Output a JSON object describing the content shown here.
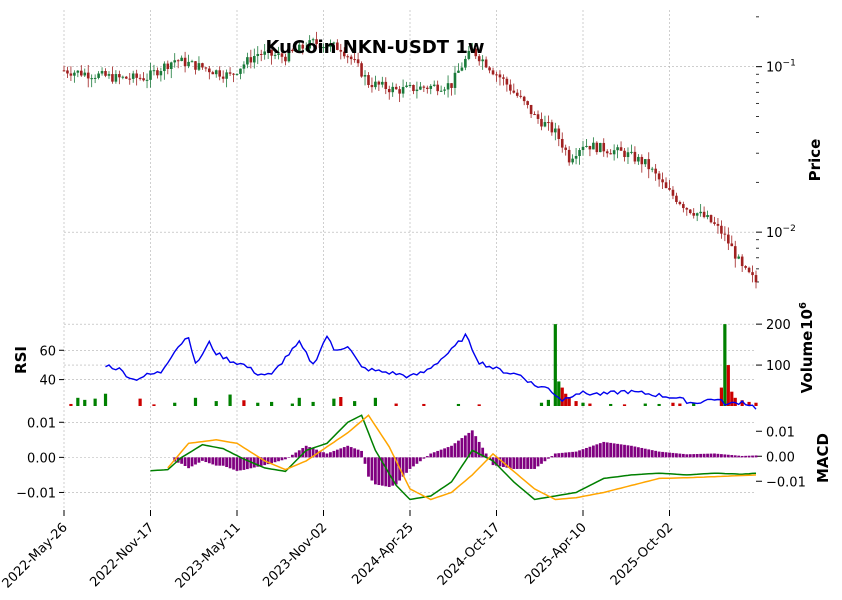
{
  "colors": {
    "up": "#1a7a3a",
    "down": "#a02020",
    "rsi": "#0000ee",
    "macd": "#008000",
    "signal": "#ffa500",
    "hist": "#800080",
    "vol_up": "#008000",
    "vol_down": "#cc0000"
  },
  "chart_data": [
    {
      "panel": "price",
      "type": "candlestick",
      "title": "KuCoin NKN-USDT 1w",
      "ylabel": "Price",
      "yscale": "log",
      "ylim": [
        0.004,
        0.22
      ],
      "yticks": [
        {
          "value": 0.1,
          "label": "10^-1"
        },
        {
          "value": 0.01,
          "label": "10^-2"
        }
      ],
      "xticks": [
        "2022-May-26",
        "2022-Nov-17",
        "2023-May-11",
        "2023-Nov-02",
        "2024-Apr-25",
        "2024-Oct-17",
        "2025-Apr-10",
        "2025-Oct-02"
      ],
      "close_anchors": [
        [
          0,
          0.095
        ],
        [
          8,
          0.09
        ],
        [
          16,
          0.085
        ],
        [
          24,
          0.086
        ],
        [
          32,
          0.11
        ],
        [
          40,
          0.099
        ],
        [
          48,
          0.088
        ],
        [
          56,
          0.12
        ],
        [
          64,
          0.115
        ],
        [
          72,
          0.14
        ],
        [
          80,
          0.13
        ],
        [
          88,
          0.08
        ],
        [
          96,
          0.072
        ],
        [
          104,
          0.075
        ],
        [
          112,
          0.078
        ],
        [
          118,
          0.125
        ],
        [
          124,
          0.095
        ],
        [
          130,
          0.07
        ],
        [
          136,
          0.05
        ],
        [
          142,
          0.04
        ],
        [
          146,
          0.028
        ],
        [
          150,
          0.034
        ],
        [
          156,
          0.032
        ],
        [
          162,
          0.03
        ],
        [
          168,
          0.026
        ],
        [
          174,
          0.018
        ],
        [
          180,
          0.014
        ],
        [
          186,
          0.012
        ],
        [
          190,
          0.01
        ],
        [
          196,
          0.006
        ],
        [
          200,
          0.005
        ]
      ]
    },
    {
      "panel": "rsi",
      "type": "line",
      "ylabel": "RSI",
      "ylim": [
        22,
        82
      ],
      "yticks": [
        40,
        60
      ],
      "values_anchors": [
        [
          12,
          50
        ],
        [
          16,
          47
        ],
        [
          20,
          40
        ],
        [
          24,
          43
        ],
        [
          28,
          45
        ],
        [
          32,
          60
        ],
        [
          36,
          70
        ],
        [
          38,
          50
        ],
        [
          42,
          65
        ],
        [
          44,
          58
        ],
        [
          48,
          53
        ],
        [
          52,
          50
        ],
        [
          56,
          44
        ],
        [
          60,
          43
        ],
        [
          64,
          55
        ],
        [
          68,
          65
        ],
        [
          72,
          50
        ],
        [
          76,
          70
        ],
        [
          78,
          60
        ],
        [
          82,
          63
        ],
        [
          86,
          48
        ],
        [
          90,
          46
        ],
        [
          96,
          44
        ],
        [
          100,
          42
        ],
        [
          104,
          45
        ],
        [
          108,
          52
        ],
        [
          112,
          60
        ],
        [
          116,
          70
        ],
        [
          120,
          52
        ],
        [
          124,
          48
        ],
        [
          128,
          45
        ],
        [
          132,
          43
        ],
        [
          136,
          36
        ],
        [
          140,
          34
        ],
        [
          144,
          26
        ],
        [
          148,
          31
        ],
        [
          156,
          30
        ],
        [
          162,
          32
        ],
        [
          170,
          30
        ],
        [
          176,
          28
        ],
        [
          182,
          24
        ],
        [
          188,
          27
        ],
        [
          192,
          23
        ],
        [
          196,
          25
        ],
        [
          200,
          21
        ]
      ]
    },
    {
      "panel": "volume",
      "type": "bar",
      "ylabel": "Volume",
      "scale_label": "10^6",
      "ylim": [
        0,
        215
      ],
      "yticks": [
        100,
        200
      ],
      "bars": [
        [
          2,
          0,
          5
        ],
        [
          4,
          1,
          20
        ],
        [
          6,
          1,
          15
        ],
        [
          9,
          1,
          18
        ],
        [
          12,
          1,
          30
        ],
        [
          22,
          0,
          18
        ],
        [
          26,
          0,
          4
        ],
        [
          32,
          1,
          8
        ],
        [
          38,
          1,
          20
        ],
        [
          44,
          1,
          12
        ],
        [
          48,
          1,
          28
        ],
        [
          52,
          0,
          14
        ],
        [
          56,
          1,
          8
        ],
        [
          60,
          1,
          10
        ],
        [
          66,
          1,
          6
        ],
        [
          68,
          1,
          20
        ],
        [
          72,
          1,
          10
        ],
        [
          78,
          1,
          18
        ],
        [
          80,
          0,
          22
        ],
        [
          84,
          1,
          12
        ],
        [
          90,
          1,
          20
        ],
        [
          96,
          0,
          6
        ],
        [
          104,
          0,
          5
        ],
        [
          114,
          1,
          5
        ],
        [
          120,
          0,
          4
        ],
        [
          138,
          1,
          8
        ],
        [
          140,
          1,
          15
        ],
        [
          142,
          1,
          200
        ],
        [
          143,
          1,
          60
        ],
        [
          144,
          0,
          45
        ],
        [
          145,
          0,
          30
        ],
        [
          146,
          0,
          22
        ],
        [
          148,
          0,
          12
        ],
        [
          150,
          1,
          8
        ],
        [
          152,
          0,
          6
        ],
        [
          158,
          1,
          5
        ],
        [
          162,
          0,
          4
        ],
        [
          168,
          1,
          6
        ],
        [
          172,
          1,
          5
        ],
        [
          176,
          0,
          8
        ],
        [
          178,
          0,
          6
        ],
        [
          182,
          1,
          8
        ],
        [
          190,
          0,
          45
        ],
        [
          191,
          1,
          200
        ],
        [
          192,
          0,
          100
        ],
        [
          193,
          0,
          35
        ],
        [
          194,
          0,
          20
        ],
        [
          196,
          0,
          14
        ],
        [
          198,
          0,
          10
        ],
        [
          200,
          0,
          8
        ]
      ]
    },
    {
      "panel": "macd",
      "type": "line+bar",
      "ylabel": "MACD",
      "ylim": [
        -0.015,
        0.0135
      ],
      "left_yticks": [
        {
          "value": 0.01,
          "label": "0.01"
        },
        {
          "value": 0.0,
          "label": "0.00"
        },
        {
          "value": -0.01,
          "label": "−0.01"
        }
      ],
      "right_yticks": [
        {
          "value": 0.01,
          "label": "0.01"
        },
        {
          "value": 0.0,
          "label": "0.00"
        },
        {
          "value": -0.01,
          "label": "−0.01"
        }
      ],
      "macd_anchors": [
        [
          25,
          -0.0038
        ],
        [
          30,
          -0.0035
        ],
        [
          34,
          0.0
        ],
        [
          40,
          0.0036
        ],
        [
          46,
          0.0025
        ],
        [
          52,
          -0.0005
        ],
        [
          58,
          -0.003
        ],
        [
          64,
          -0.004
        ],
        [
          70,
          0.002
        ],
        [
          76,
          0.004
        ],
        [
          82,
          0.01
        ],
        [
          86,
          0.012
        ],
        [
          90,
          0.002
        ],
        [
          96,
          -0.008
        ],
        [
          100,
          -0.012
        ],
        [
          106,
          -0.011
        ],
        [
          112,
          -0.007
        ],
        [
          118,
          0.002
        ],
        [
          124,
          -0.001
        ],
        [
          130,
          -0.007
        ],
        [
          136,
          -0.012
        ],
        [
          142,
          -0.011
        ],
        [
          148,
          -0.01
        ],
        [
          156,
          -0.006
        ],
        [
          164,
          -0.005
        ],
        [
          172,
          -0.0045
        ],
        [
          180,
          -0.005
        ],
        [
          188,
          -0.0045
        ],
        [
          196,
          -0.0048
        ],
        [
          200,
          -0.0045
        ]
      ],
      "signal_anchors": [
        [
          30,
          -0.003
        ],
        [
          36,
          0.004
        ],
        [
          44,
          0.005
        ],
        [
          50,
          0.004
        ],
        [
          58,
          -0.001
        ],
        [
          64,
          -0.0035
        ],
        [
          70,
          -0.001
        ],
        [
          76,
          0.003
        ],
        [
          82,
          0.007
        ],
        [
          88,
          0.012
        ],
        [
          94,
          0.003
        ],
        [
          100,
          -0.009
        ],
        [
          106,
          -0.012
        ],
        [
          112,
          -0.01
        ],
        [
          118,
          -0.005
        ],
        [
          124,
          0.001
        ],
        [
          130,
          -0.004
        ],
        [
          136,
          -0.009
        ],
        [
          142,
          -0.012
        ],
        [
          148,
          -0.0115
        ],
        [
          156,
          -0.01
        ],
        [
          164,
          -0.008
        ],
        [
          172,
          -0.006
        ],
        [
          180,
          -0.0058
        ],
        [
          188,
          -0.0055
        ],
        [
          200,
          -0.005
        ]
      ]
    }
  ]
}
